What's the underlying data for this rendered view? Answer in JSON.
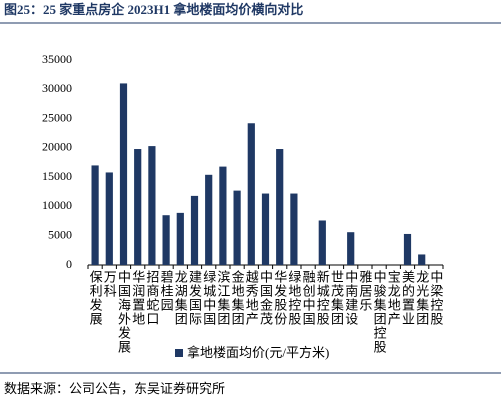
{
  "chart_data": {
    "type": "bar",
    "title": "图25：25 家重点房企 2023H1 拿地楼面均价横向对比",
    "source": "数据来源：公司公告，东吴证券研究所",
    "categories": [
      "保利发展",
      "万科",
      "中国海外发展",
      "华润置地",
      "招商蛇口",
      "碧桂园",
      "龙湖集团",
      "建发国际",
      "绿城中国",
      "滨江集团",
      "金地集团",
      "越秀地产",
      "中国金茂",
      "华发股份",
      "绿地控股",
      "融创中国",
      "新城控股",
      "世茂集团",
      "中南建设",
      "雅居乐",
      "中骏集团控股",
      "宝龙地产",
      "美的置业",
      "龙光集团",
      "中梁控股"
    ],
    "series": [
      {
        "name": "拿地楼面均价(元/平方米)",
        "color": "#1f3864",
        "values": [
          17000,
          15800,
          31000,
          19800,
          20300,
          8500,
          8900,
          11800,
          15400,
          16800,
          12700,
          24200,
          12200,
          19800,
          12200,
          0,
          7600,
          0,
          5600,
          0,
          0,
          0,
          5300,
          1800,
          0
        ]
      }
    ],
    "ylim": [
      0,
      35000
    ],
    "yticks": [
      0,
      5000,
      10000,
      15000,
      20000,
      25000,
      30000,
      35000
    ],
    "grid": false,
    "legend": "bottom"
  }
}
